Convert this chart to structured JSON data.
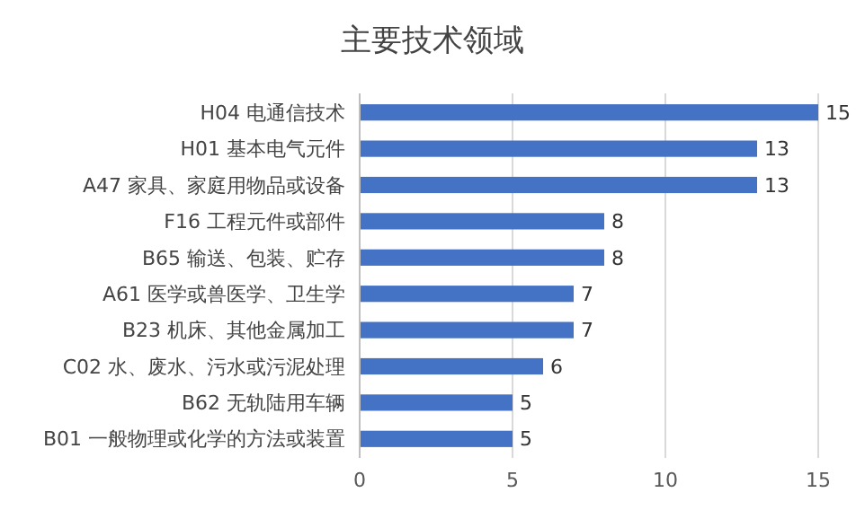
{
  "chart_data": {
    "type": "bar",
    "orientation": "horizontal",
    "title": "主要技术领域",
    "categories": [
      "H04 电通信技术",
      "H01 基本电气元件",
      "A47 家具、家庭用物品或设备",
      "F16 工程元件或部件",
      "B65 输送、包装、贮存",
      "A61 医学或兽医学、卫生学",
      "B23 机床、其他金属加工",
      "C02 水、废水、污水或污泥处理",
      "B62 无轨陆用车辆",
      "B01 一般物理或化学的方法或装置"
    ],
    "values": [
      15,
      13,
      13,
      8,
      8,
      7,
      7,
      6,
      5,
      5
    ],
    "color": "#4472c4",
    "xlim": [
      0,
      15
    ],
    "xticks": [
      0,
      5,
      10,
      15
    ],
    "grid": "x",
    "data_labels": true
  }
}
